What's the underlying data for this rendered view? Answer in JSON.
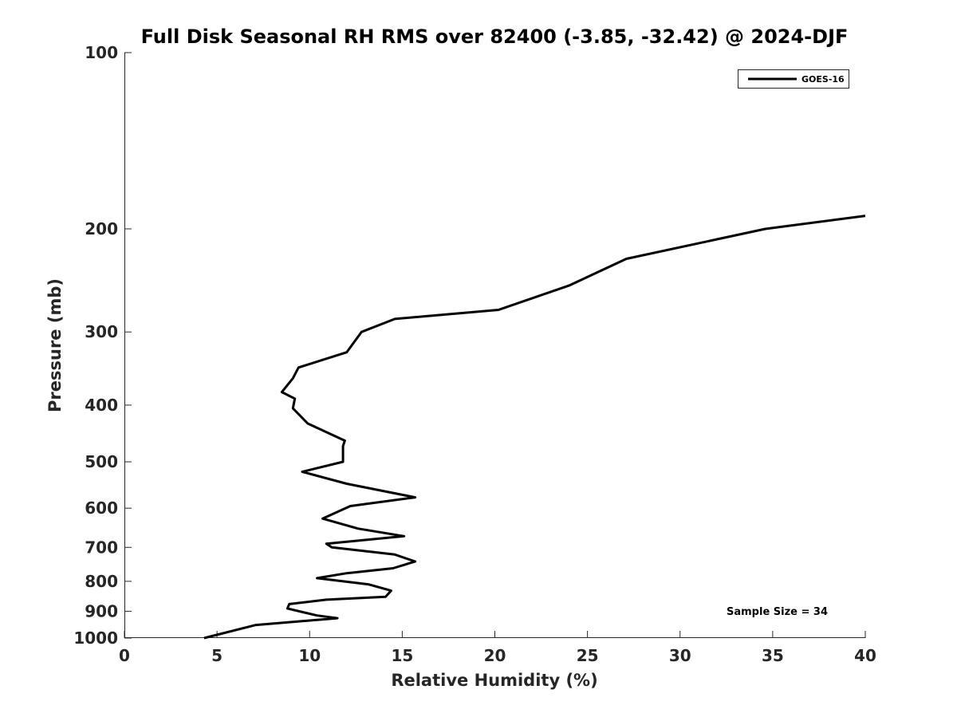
{
  "chart_data": {
    "type": "line",
    "title": "Full Disk Seasonal RH RMS over 82400 (-3.85, -32.42) @ 2024-DJF",
    "xlabel": "Relative Humidity (%)",
    "ylabel": "Pressure (mb)",
    "xlim": [
      0,
      40
    ],
    "ylim": [
      100,
      1000
    ],
    "y_scale": "log",
    "y_reversed": true,
    "x_ticks": [
      "0",
      "5",
      "10",
      "15",
      "20",
      "25",
      "30",
      "35",
      "40"
    ],
    "y_ticks": [
      "100",
      "200",
      "300",
      "400",
      "500",
      "600",
      "700",
      "800",
      "900",
      "1000"
    ],
    "grid": false,
    "legend_position": "top-right",
    "annotation": "Sample Size = 34",
    "line_color": "#000000",
    "series": [
      {
        "name": "GOES-16",
        "x": [
          40.0,
          34.6,
          27.1,
          24.0,
          20.2,
          14.6,
          12.8,
          12.0,
          9.4,
          9.1,
          8.5,
          9.2,
          9.1,
          9.9,
          11.9,
          11.8,
          11.8,
          9.6,
          12.0,
          15.7,
          12.2,
          10.7,
          12.6,
          15.1,
          10.9,
          11.2,
          14.6,
          15.7,
          14.5,
          12.0,
          10.4,
          13.2,
          14.4,
          14.1,
          10.9,
          8.9,
          8.8,
          10.4,
          11.5,
          7.1,
          4.3
        ],
        "y": [
          190,
          200,
          225,
          250,
          275,
          285,
          300,
          325,
          345,
          360,
          380,
          390,
          405,
          430,
          460,
          470,
          500,
          520,
          545,
          575,
          595,
          625,
          650,
          670,
          690,
          700,
          720,
          740,
          760,
          775,
          790,
          810,
          830,
          850,
          860,
          875,
          890,
          915,
          925,
          950,
          1000
        ]
      }
    ]
  }
}
